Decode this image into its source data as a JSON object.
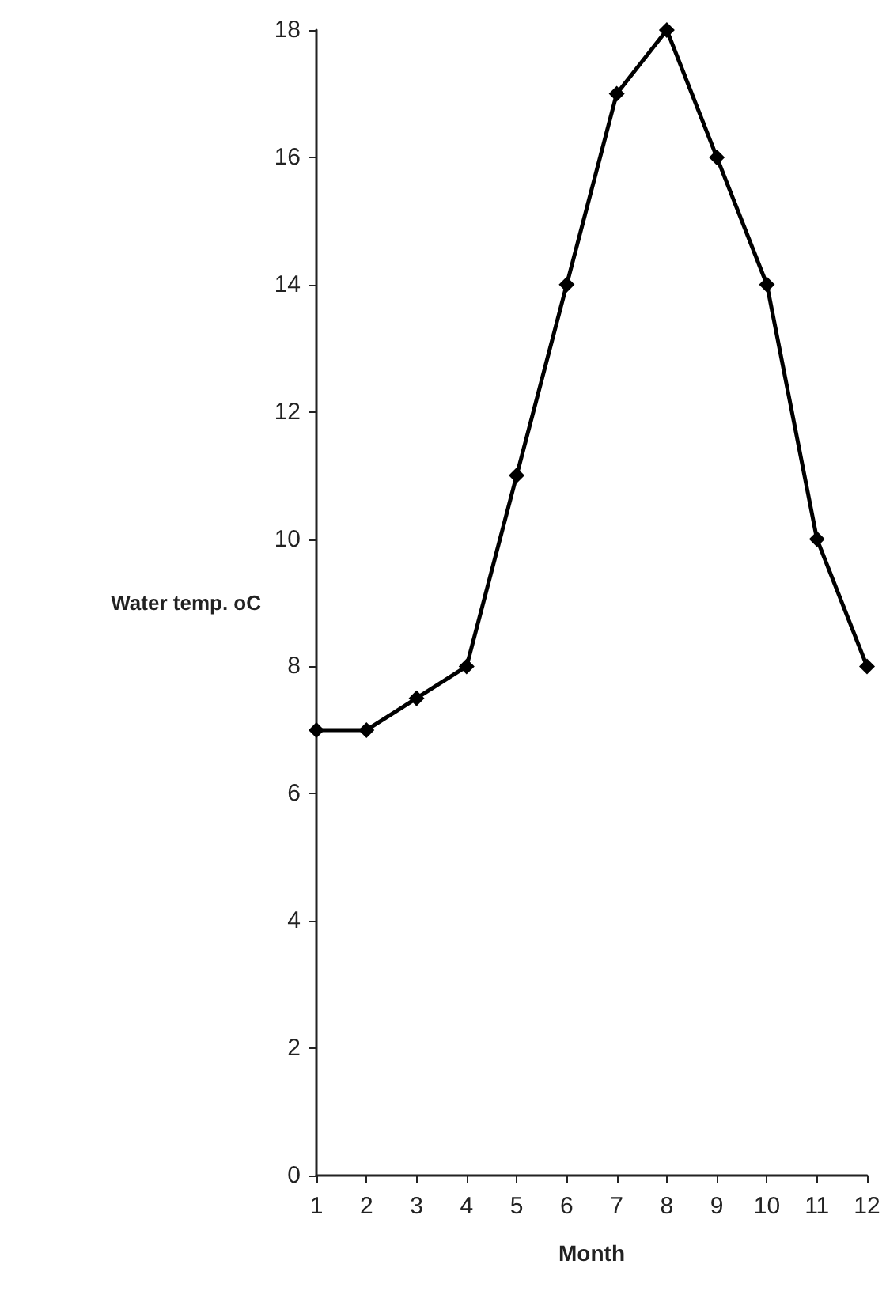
{
  "chart_data": {
    "type": "line",
    "xlabel": "Month",
    "ylabel": "Water temp. oC",
    "x": [
      1,
      2,
      3,
      4,
      5,
      6,
      7,
      8,
      9,
      10,
      11,
      12
    ],
    "series": [
      {
        "color": "#000000",
        "values": [
          7,
          7,
          7.5,
          8,
          11,
          14,
          17,
          18,
          16,
          14,
          10,
          8
        ]
      }
    ],
    "xlim": [
      1,
      12
    ],
    "xticks": [
      1,
      2,
      3,
      4,
      5,
      6,
      7,
      8,
      9,
      10,
      11,
      12
    ],
    "ylim": [
      0,
      18
    ],
    "yticks": [
      0,
      2,
      4,
      6,
      8,
      10,
      12,
      14,
      16,
      18
    ],
    "grid": false,
    "marker": "diamond",
    "line_style": "solid"
  }
}
